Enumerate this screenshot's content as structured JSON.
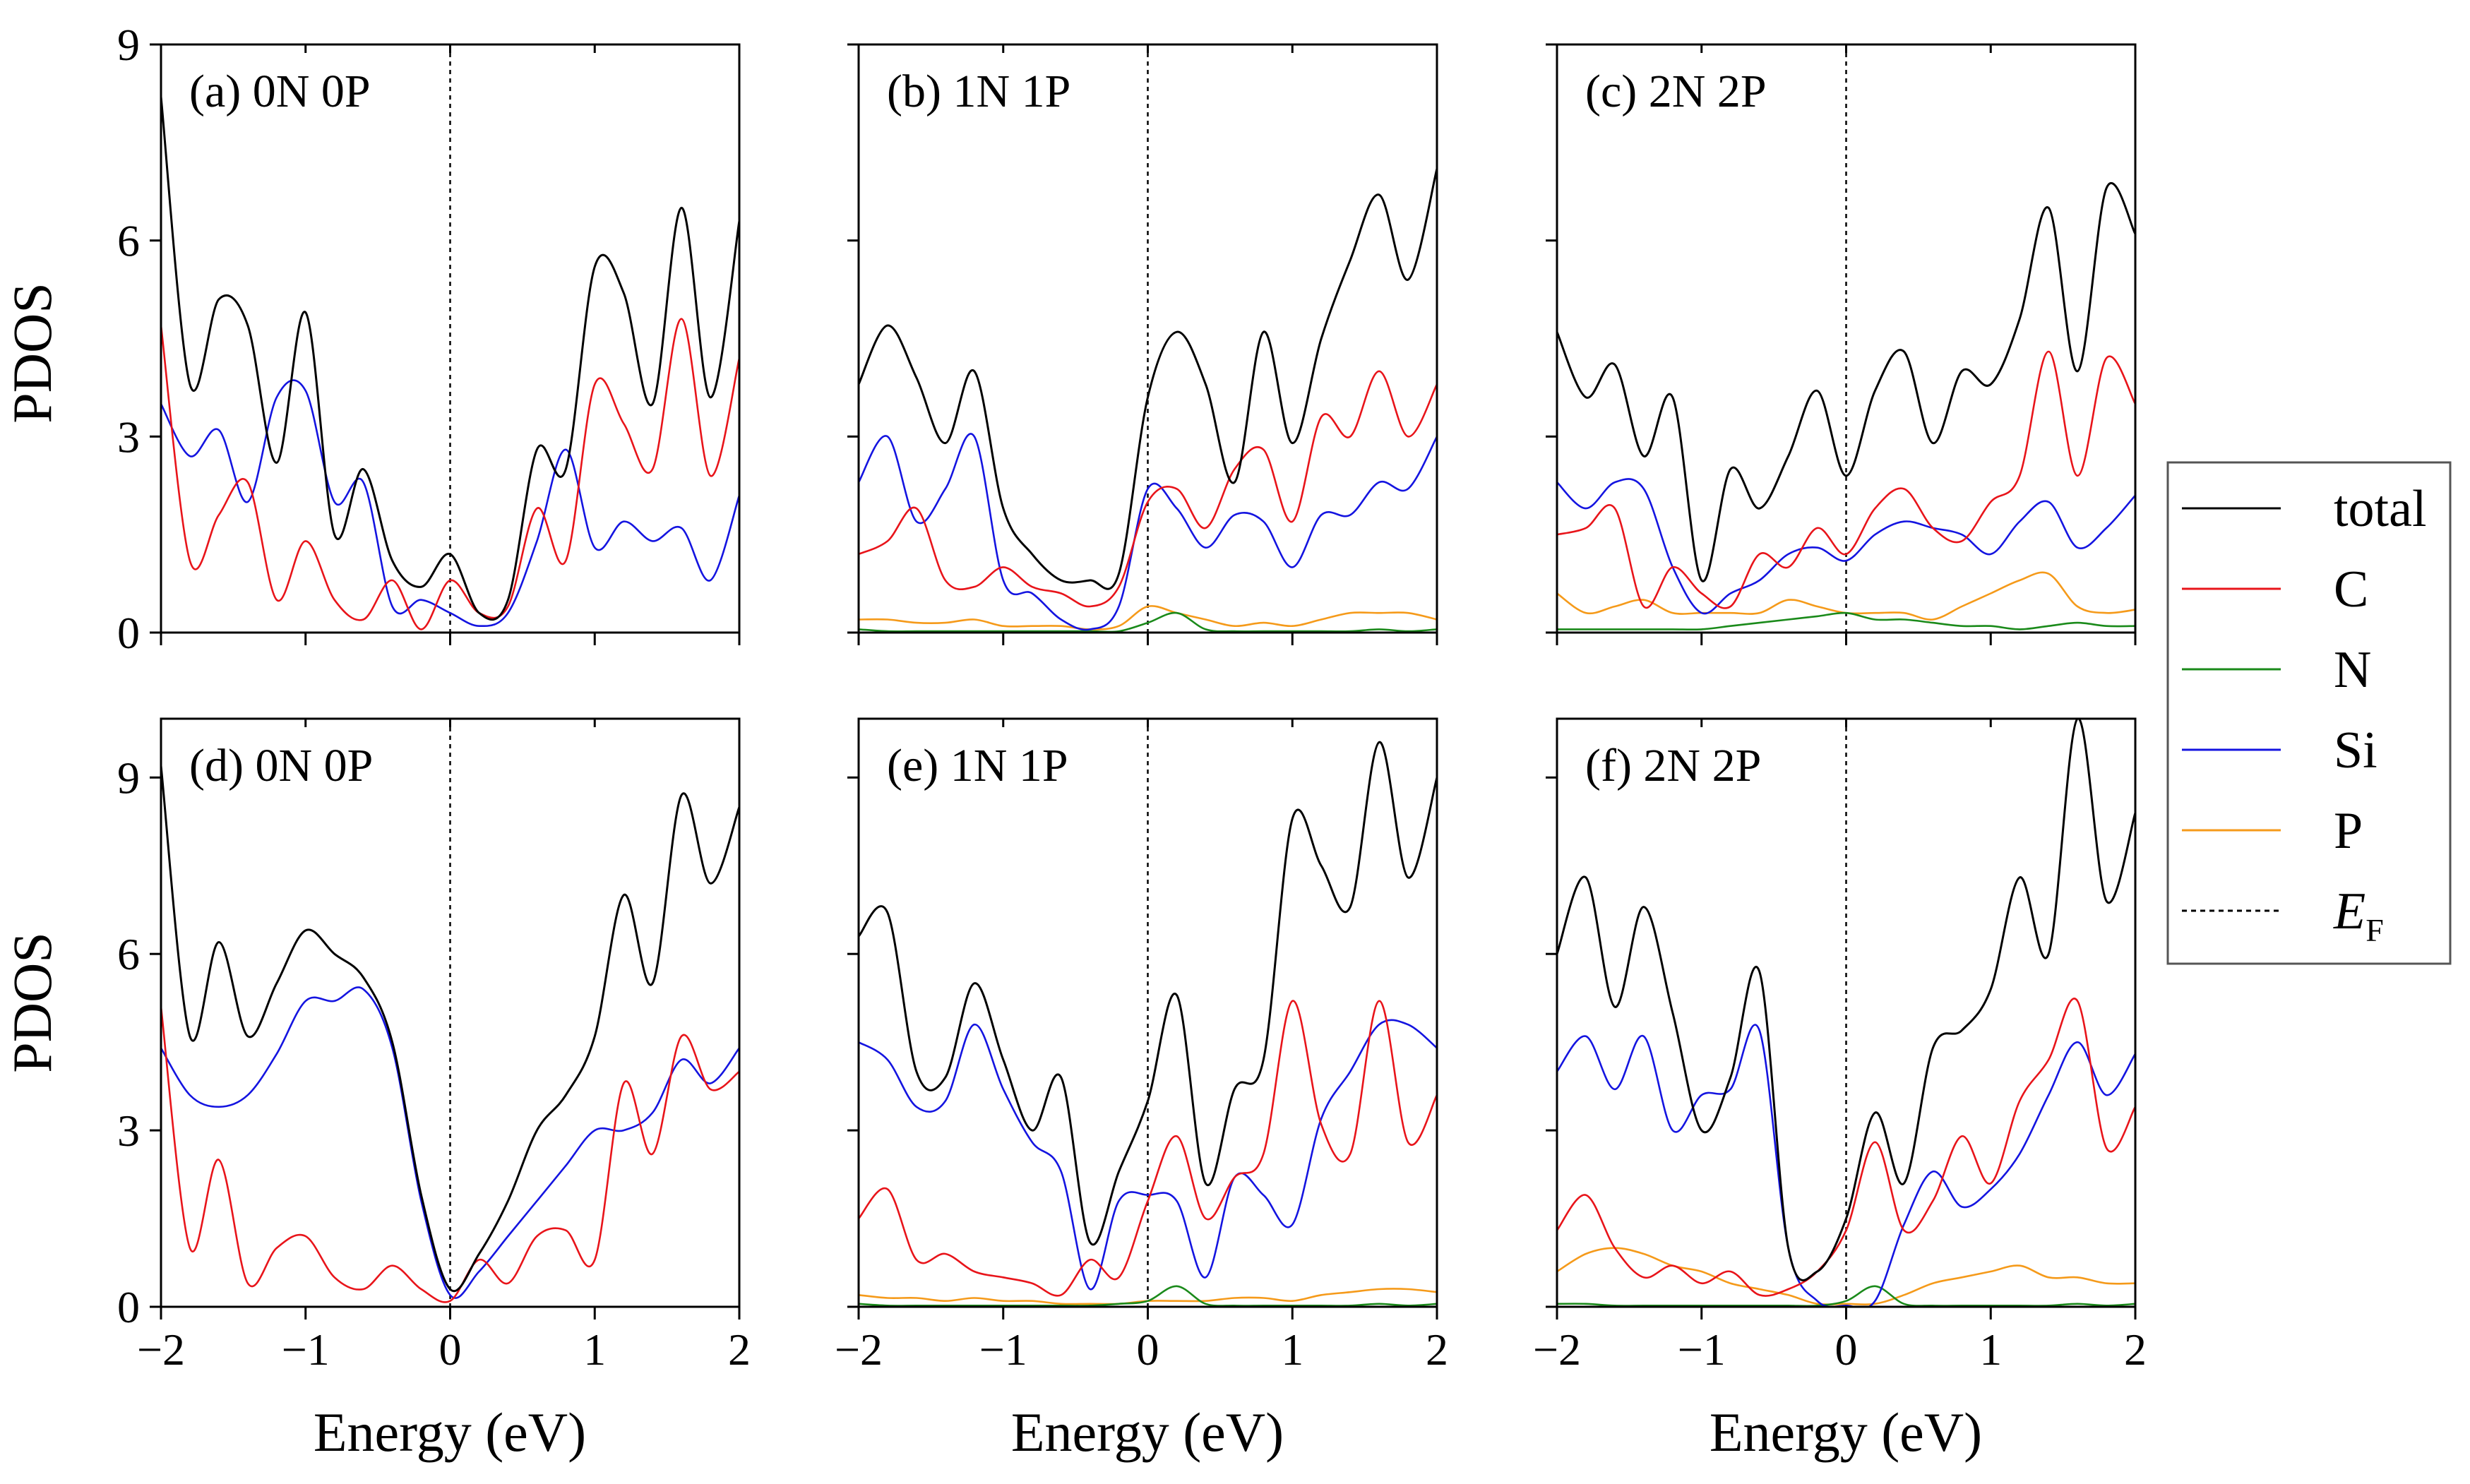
{
  "figure": {
    "ylabel": "PDOS",
    "xlabel": "Energy (eV)",
    "colors": {
      "total": "#000000",
      "C": "#e8141a",
      "N": "#1a8a1a",
      "Si": "#1414e0",
      "P": "#f59a1a",
      "EF": "#000000"
    }
  },
  "legend": {
    "items": [
      {
        "key": "total",
        "label": "total",
        "style": "solid"
      },
      {
        "key": "C",
        "label": "C",
        "style": "solid"
      },
      {
        "key": "N",
        "label": "N",
        "style": "solid"
      },
      {
        "key": "Si",
        "label": "Si",
        "style": "solid"
      },
      {
        "key": "P",
        "label": "P",
        "style": "solid"
      }
    ],
    "ef": {
      "main": "E",
      "sub": "F"
    }
  },
  "chart_data": [
    {
      "type": "line",
      "label": "(a) 0N 0P",
      "xlim": [
        -2,
        2
      ],
      "ylim": [
        0,
        9
      ],
      "xticks": [
        "−2",
        "−1",
        "0",
        "1",
        "2"
      ],
      "yticks": [
        "0",
        "3",
        "6",
        "9"
      ],
      "x": [
        -2.0,
        -1.8,
        -1.6,
        -1.4,
        -1.2,
        -1.0,
        -0.8,
        -0.6,
        -0.4,
        -0.2,
        0.0,
        0.2,
        0.4,
        0.6,
        0.8,
        1.0,
        1.2,
        1.4,
        1.6,
        1.8,
        2.0
      ],
      "series": [
        {
          "name": "total",
          "values": [
            8.2,
            3.8,
            5.1,
            4.7,
            2.6,
            4.9,
            1.5,
            2.5,
            1.1,
            0.7,
            1.2,
            0.3,
            0.5,
            2.8,
            2.5,
            5.6,
            5.2,
            3.5,
            6.5,
            3.6,
            6.3
          ]
        },
        {
          "name": "C",
          "values": [
            4.7,
            1.1,
            1.8,
            2.3,
            0.5,
            1.4,
            0.5,
            0.2,
            0.8,
            0.05,
            0.8,
            0.3,
            0.4,
            1.9,
            1.1,
            3.8,
            3.2,
            2.5,
            4.8,
            2.4,
            4.2
          ]
        },
        {
          "name": "Si",
          "values": [
            3.5,
            2.7,
            3.1,
            2.0,
            3.6,
            3.7,
            2.0,
            2.3,
            0.4,
            0.5,
            0.3,
            0.1,
            0.3,
            1.4,
            2.8,
            1.3,
            1.7,
            1.4,
            1.6,
            0.8,
            2.1
          ]
        }
      ]
    },
    {
      "type": "line",
      "label": "(b) 1N 1P",
      "xlim": [
        -2,
        2
      ],
      "ylim": [
        0,
        9
      ],
      "xticks": [
        "−2",
        "−1",
        "0",
        "1",
        "2"
      ],
      "yticks": [
        "0",
        "3",
        "6",
        "9"
      ],
      "x": [
        -2.0,
        -1.8,
        -1.6,
        -1.4,
        -1.2,
        -1.0,
        -0.8,
        -0.6,
        -0.4,
        -0.2,
        0.0,
        0.2,
        0.4,
        0.6,
        0.8,
        1.0,
        1.2,
        1.4,
        1.6,
        1.8,
        2.0
      ],
      "series": [
        {
          "name": "total",
          "values": [
            3.8,
            4.7,
            3.9,
            2.9,
            4.0,
            1.9,
            1.2,
            0.8,
            0.8,
            0.9,
            3.6,
            4.6,
            3.8,
            2.3,
            4.6,
            2.9,
            4.5,
            5.7,
            6.7,
            5.4,
            7.1
          ]
        },
        {
          "name": "C",
          "values": [
            1.2,
            1.4,
            1.9,
            0.8,
            0.7,
            1.0,
            0.7,
            0.6,
            0.4,
            0.7,
            2.0,
            2.2,
            1.6,
            2.5,
            2.8,
            1.7,
            3.3,
            3.0,
            4.0,
            3.0,
            3.8
          ]
        },
        {
          "name": "N",
          "values": [
            0.05,
            0.02,
            0.02,
            0.02,
            0.02,
            0.02,
            0.02,
            0.02,
            0.02,
            0.02,
            0.15,
            0.3,
            0.05,
            0.02,
            0.02,
            0.02,
            0.02,
            0.02,
            0.05,
            0.02,
            0.05
          ]
        },
        {
          "name": "Si",
          "values": [
            2.3,
            3.0,
            1.7,
            2.2,
            3.0,
            0.8,
            0.6,
            0.2,
            0.05,
            0.4,
            2.2,
            1.9,
            1.3,
            1.8,
            1.7,
            1.0,
            1.8,
            1.8,
            2.3,
            2.2,
            3.0
          ]
        },
        {
          "name": "P",
          "values": [
            0.2,
            0.2,
            0.15,
            0.15,
            0.2,
            0.1,
            0.1,
            0.1,
            0.05,
            0.1,
            0.4,
            0.3,
            0.2,
            0.1,
            0.15,
            0.1,
            0.2,
            0.3,
            0.3,
            0.3,
            0.2
          ]
        }
      ]
    },
    {
      "type": "line",
      "label": "(c) 2N 2P",
      "xlim": [
        -2,
        2
      ],
      "ylim": [
        0,
        9
      ],
      "xticks": [
        "−2",
        "−1",
        "0",
        "1",
        "2"
      ],
      "yticks": [
        "0",
        "3",
        "6",
        "9"
      ],
      "x": [
        -2.0,
        -1.8,
        -1.6,
        -1.4,
        -1.2,
        -1.0,
        -0.8,
        -0.6,
        -0.4,
        -0.2,
        0.0,
        0.2,
        0.4,
        0.6,
        0.8,
        1.0,
        1.2,
        1.4,
        1.6,
        1.8,
        2.0
      ],
      "series": [
        {
          "name": "total",
          "values": [
            4.6,
            3.6,
            4.1,
            2.7,
            3.6,
            0.8,
            2.5,
            1.9,
            2.7,
            3.7,
            2.4,
            3.7,
            4.3,
            2.9,
            4.0,
            3.8,
            4.8,
            6.5,
            4.0,
            6.8,
            6.1
          ]
        },
        {
          "name": "C",
          "values": [
            1.5,
            1.6,
            1.9,
            0.4,
            1.0,
            0.6,
            0.4,
            1.2,
            1.0,
            1.6,
            1.2,
            1.9,
            2.2,
            1.6,
            1.4,
            2.0,
            2.4,
            4.3,
            2.4,
            4.2,
            3.5
          ]
        },
        {
          "name": "N",
          "values": [
            0.05,
            0.05,
            0.05,
            0.05,
            0.05,
            0.05,
            0.1,
            0.15,
            0.2,
            0.25,
            0.3,
            0.2,
            0.2,
            0.15,
            0.1,
            0.1,
            0.05,
            0.1,
            0.15,
            0.1,
            0.1
          ]
        },
        {
          "name": "Si",
          "values": [
            2.3,
            1.9,
            2.3,
            2.2,
            1.0,
            0.3,
            0.6,
            0.8,
            1.2,
            1.3,
            1.1,
            1.5,
            1.7,
            1.6,
            1.5,
            1.2,
            1.7,
            2.0,
            1.3,
            1.6,
            2.1
          ]
        },
        {
          "name": "P",
          "values": [
            0.6,
            0.3,
            0.4,
            0.5,
            0.3,
            0.3,
            0.3,
            0.3,
            0.5,
            0.4,
            0.3,
            0.3,
            0.3,
            0.2,
            0.4,
            0.6,
            0.8,
            0.9,
            0.4,
            0.3,
            0.35
          ]
        }
      ]
    },
    {
      "type": "line",
      "label": "(d) 0N 0P",
      "xlim": [
        -2,
        2
      ],
      "ylim": [
        0,
        10
      ],
      "xticks": [
        "−2",
        "−1",
        "0",
        "1",
        "2"
      ],
      "yticks": [
        "0",
        "3",
        "6",
        "9"
      ],
      "x": [
        -2.0,
        -1.8,
        -1.6,
        -1.4,
        -1.2,
        -1.0,
        -0.8,
        -0.6,
        -0.4,
        -0.2,
        0.0,
        0.2,
        0.4,
        0.6,
        0.8,
        1.0,
        1.2,
        1.4,
        1.6,
        1.8,
        2.0
      ],
      "series": [
        {
          "name": "total",
          "values": [
            9.2,
            4.6,
            6.2,
            4.6,
            5.5,
            6.4,
            6.0,
            5.6,
            4.5,
            1.9,
            0.3,
            0.9,
            1.8,
            3.0,
            3.6,
            4.6,
            7.0,
            5.5,
            8.7,
            7.2,
            8.5
          ]
        },
        {
          "name": "C",
          "values": [
            5.1,
            1.0,
            2.5,
            0.4,
            1.0,
            1.2,
            0.5,
            0.3,
            0.7,
            0.3,
            0.1,
            0.8,
            0.4,
            1.2,
            1.3,
            0.8,
            3.8,
            2.6,
            4.6,
            3.7,
            4.0
          ]
        },
        {
          "name": "Si",
          "values": [
            4.4,
            3.6,
            3.4,
            3.6,
            4.3,
            5.2,
            5.2,
            5.4,
            4.4,
            1.8,
            0.2,
            0.6,
            1.2,
            1.8,
            2.4,
            3.0,
            3.0,
            3.3,
            4.2,
            3.8,
            4.4
          ]
        }
      ]
    },
    {
      "type": "line",
      "label": "(e) 1N 1P",
      "xlim": [
        -2,
        2
      ],
      "ylim": [
        0,
        10
      ],
      "xticks": [
        "−2",
        "−1",
        "0",
        "1",
        "2"
      ],
      "yticks": [
        "0",
        "3",
        "6",
        "9"
      ],
      "x": [
        -2.0,
        -1.8,
        -1.6,
        -1.4,
        -1.2,
        -1.0,
        -0.8,
        -0.6,
        -0.4,
        -0.2,
        0.0,
        0.2,
        0.4,
        0.6,
        0.8,
        1.0,
        1.2,
        1.4,
        1.6,
        1.8,
        2.0
      ],
      "series": [
        {
          "name": "total",
          "values": [
            6.3,
            6.7,
            4.0,
            3.9,
            5.5,
            4.2,
            3.0,
            3.9,
            1.1,
            2.3,
            3.5,
            5.3,
            2.1,
            3.7,
            4.2,
            8.3,
            7.5,
            6.8,
            9.6,
            7.3,
            9.0
          ]
        },
        {
          "name": "C",
          "values": [
            1.5,
            2.0,
            0.8,
            0.9,
            0.6,
            0.5,
            0.4,
            0.2,
            0.8,
            0.5,
            1.8,
            2.9,
            1.5,
            2.2,
            2.6,
            5.2,
            3.1,
            2.6,
            5.2,
            2.8,
            3.6
          ]
        },
        {
          "name": "N",
          "values": [
            0.05,
            0.02,
            0.02,
            0.02,
            0.02,
            0.02,
            0.02,
            0.02,
            0.02,
            0.05,
            0.1,
            0.35,
            0.05,
            0.02,
            0.02,
            0.02,
            0.02,
            0.02,
            0.05,
            0.02,
            0.05
          ]
        },
        {
          "name": "Si",
          "values": [
            4.5,
            4.2,
            3.4,
            3.5,
            4.8,
            3.7,
            2.8,
            2.3,
            0.3,
            1.8,
            1.9,
            1.8,
            0.5,
            2.2,
            1.9,
            1.4,
            3.2,
            4.0,
            4.8,
            4.8,
            4.4
          ]
        },
        {
          "name": "P",
          "values": [
            0.2,
            0.15,
            0.15,
            0.1,
            0.15,
            0.1,
            0.1,
            0.05,
            0.05,
            0.05,
            0.1,
            0.1,
            0.1,
            0.15,
            0.15,
            0.1,
            0.2,
            0.25,
            0.3,
            0.3,
            0.25
          ]
        }
      ]
    },
    {
      "type": "line",
      "label": "(f) 2N 2P",
      "xlim": [
        -2,
        2
      ],
      "ylim": [
        0,
        10
      ],
      "xticks": [
        "−2",
        "−1",
        "0",
        "1",
        "2"
      ],
      "yticks": [
        "0",
        "3",
        "6",
        "9"
      ],
      "x": [
        -2.0,
        -1.8,
        -1.6,
        -1.4,
        -1.2,
        -1.0,
        -0.8,
        -0.6,
        -0.4,
        -0.2,
        0.0,
        0.2,
        0.4,
        0.6,
        0.8,
        1.0,
        1.2,
        1.4,
        1.6,
        1.8,
        2.0
      ],
      "series": [
        {
          "name": "total",
          "values": [
            6.0,
            7.3,
            5.1,
            6.8,
            5.0,
            3.0,
            3.9,
            5.7,
            1.0,
            0.6,
            1.5,
            3.3,
            2.1,
            4.4,
            4.7,
            5.4,
            7.3,
            6.0,
            10.0,
            6.9,
            8.4
          ]
        },
        {
          "name": "C",
          "values": [
            1.3,
            1.9,
            1.0,
            0.5,
            0.7,
            0.4,
            0.6,
            0.2,
            0.3,
            0.6,
            1.3,
            2.8,
            1.3,
            1.8,
            2.9,
            2.1,
            3.5,
            4.2,
            5.2,
            2.7,
            3.4
          ]
        },
        {
          "name": "N",
          "values": [
            0.05,
            0.05,
            0.02,
            0.02,
            0.02,
            0.02,
            0.02,
            0.02,
            0.02,
            0.02,
            0.1,
            0.35,
            0.05,
            0.02,
            0.02,
            0.02,
            0.02,
            0.02,
            0.05,
            0.02,
            0.05
          ]
        },
        {
          "name": "Si",
          "values": [
            4.0,
            4.6,
            3.7,
            4.6,
            3.0,
            3.6,
            3.7,
            4.7,
            1.0,
            0.1,
            0.02,
            0.1,
            1.4,
            2.3,
            1.7,
            2.0,
            2.6,
            3.6,
            4.5,
            3.6,
            4.3
          ]
        },
        {
          "name": "P",
          "values": [
            0.6,
            0.9,
            1.0,
            0.9,
            0.7,
            0.6,
            0.4,
            0.3,
            0.2,
            0.05,
            0.05,
            0.05,
            0.2,
            0.4,
            0.5,
            0.6,
            0.7,
            0.5,
            0.5,
            0.4,
            0.4
          ]
        }
      ]
    }
  ]
}
